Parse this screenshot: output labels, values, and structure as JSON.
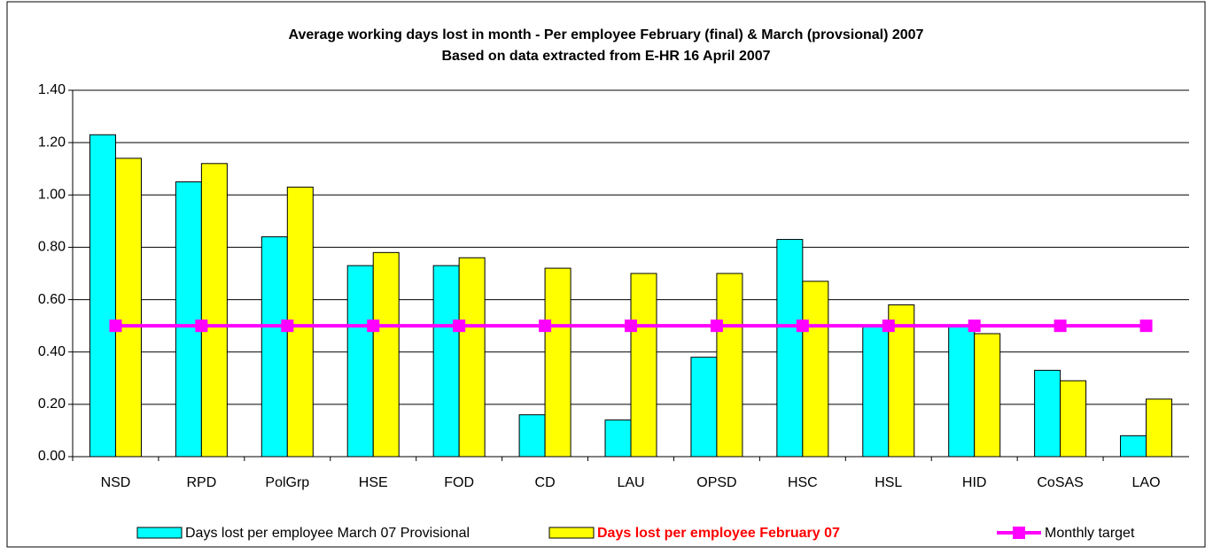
{
  "chart_data": {
    "type": "bar",
    "title": "Average working days lost in month -  Per employee February (final) & March (provsional) 2007",
    "subtitle": "Based on data extracted from E-HR 16 April 2007",
    "categories": [
      "NSD",
      "RPD",
      "PolGrp",
      "HSE",
      "FOD",
      "CD",
      "LAU",
      "OPSD",
      "HSC",
      "HSL",
      "HID",
      "CoSAS",
      "LAO"
    ],
    "series": [
      {
        "name": "Days lost per employee March 07 Provisional",
        "type": "bar",
        "color": "#00ffff",
        "label_color": "#000000",
        "values": [
          1.23,
          1.05,
          0.84,
          0.73,
          0.73,
          0.16,
          0.14,
          0.38,
          0.83,
          0.5,
          0.5,
          0.33,
          0.08
        ]
      },
      {
        "name": "Days lost per employee February 07",
        "type": "bar",
        "color": "#ffff00",
        "label_color": "#ff0000",
        "values": [
          1.14,
          1.12,
          1.03,
          0.78,
          0.76,
          0.72,
          0.7,
          0.7,
          0.67,
          0.58,
          0.47,
          0.29,
          0.22
        ]
      },
      {
        "name": "Monthly target",
        "type": "line",
        "color": "#ff00ff",
        "label_color": "#000000",
        "values": [
          0.5,
          0.5,
          0.5,
          0.5,
          0.5,
          0.5,
          0.5,
          0.5,
          0.5,
          0.5,
          0.5,
          0.5,
          0.5
        ]
      }
    ],
    "ylim": [
      0,
      1.4
    ],
    "yticks": [
      {
        "value": 0,
        "label": "0.00"
      },
      {
        "value": 0.2,
        "label": "0.20"
      },
      {
        "value": 0.4,
        "label": "0.40"
      },
      {
        "value": 0.6,
        "label": "0.60"
      },
      {
        "value": 0.8,
        "label": "0.80"
      },
      {
        "value": 1.0,
        "label": "1.00"
      },
      {
        "value": 1.2,
        "label": "1.20"
      },
      {
        "value": 1.4,
        "label": "1.40"
      }
    ],
    "grid": true,
    "legend": "bottom"
  }
}
